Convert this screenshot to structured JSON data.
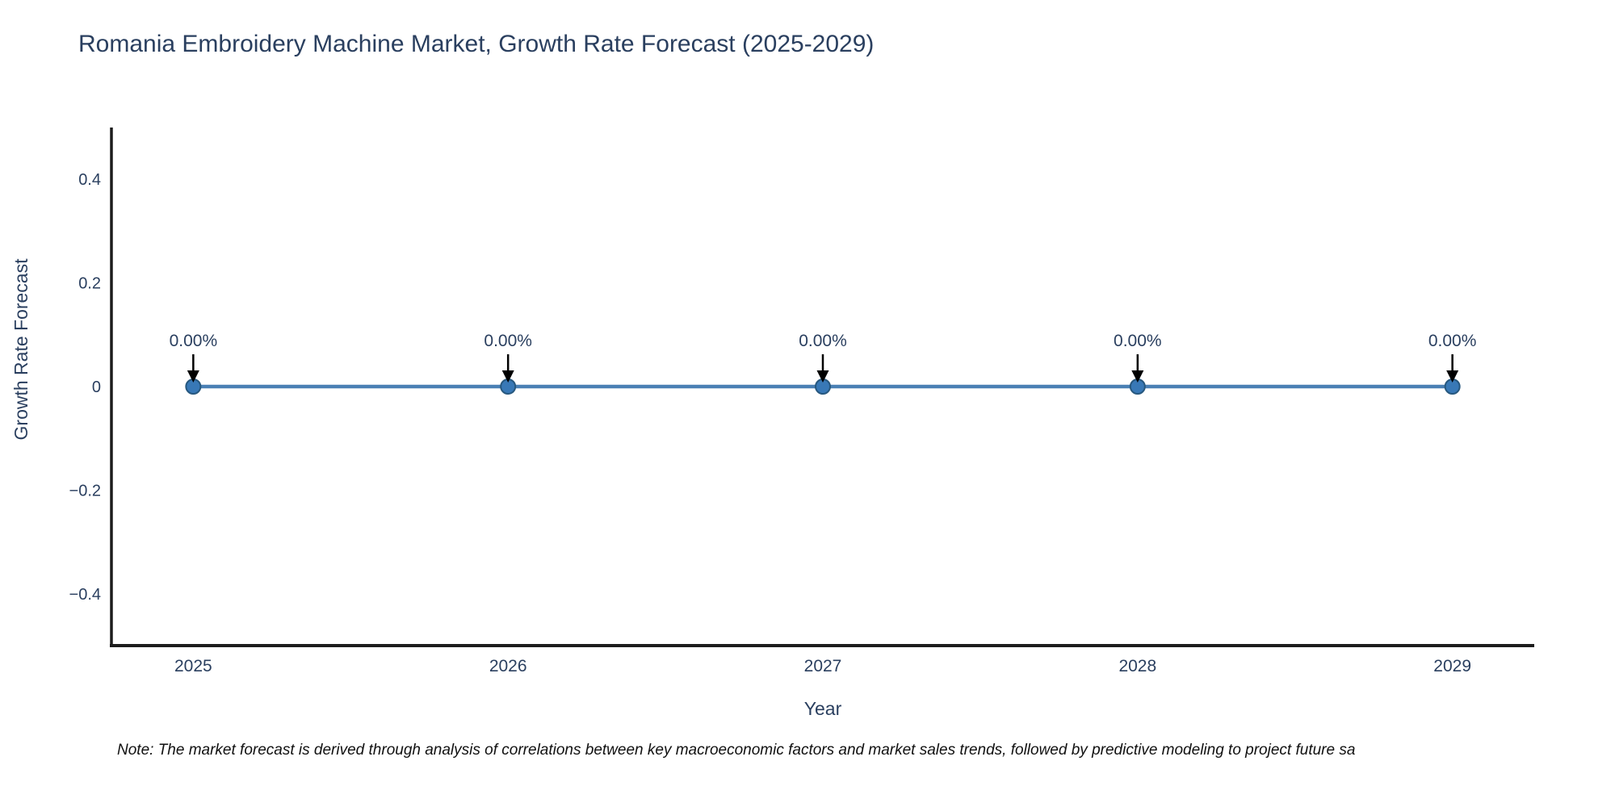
{
  "note": "Note: The market forecast is derived through analysis of correlations between key macroeconomic factors and market sales trends, followed by predictive modeling to project future sa",
  "chart_data": {
    "type": "line",
    "title": "Romania Embroidery Machine Market, Growth Rate Forecast (2025-2029)",
    "x": [
      2025,
      2026,
      2027,
      2028,
      2029
    ],
    "y": [
      0,
      0,
      0,
      0,
      0
    ],
    "point_labels": [
      "0.00%",
      "0.00%",
      "0.00%",
      "0.00%",
      "0.00%"
    ],
    "xlabel": "Year",
    "ylabel": "Growth Rate Forecast",
    "xlim": [
      2024.74,
      2029.26
    ],
    "ylim": [
      -0.5,
      0.5
    ],
    "x_ticks": [
      "2025",
      "2026",
      "2027",
      "2028",
      "2029"
    ],
    "y_ticks": [
      {
        "value": 0.4,
        "label": "0.4"
      },
      {
        "value": 0.2,
        "label": "0.2"
      },
      {
        "value": 0,
        "label": "0"
      },
      {
        "value": -0.2,
        "label": "−0.2"
      },
      {
        "value": -0.4,
        "label": "−0.4"
      }
    ],
    "grid": false,
    "legend": false,
    "annotations_have_arrows": true,
    "colors": {
      "line": "#4a80b4",
      "marker": "#3878b6",
      "marker_edge": "#27587f",
      "axis": "#1c1c1c",
      "text": "#2a3f5f",
      "arrow": "#000000",
      "background": "#ffffff"
    }
  }
}
